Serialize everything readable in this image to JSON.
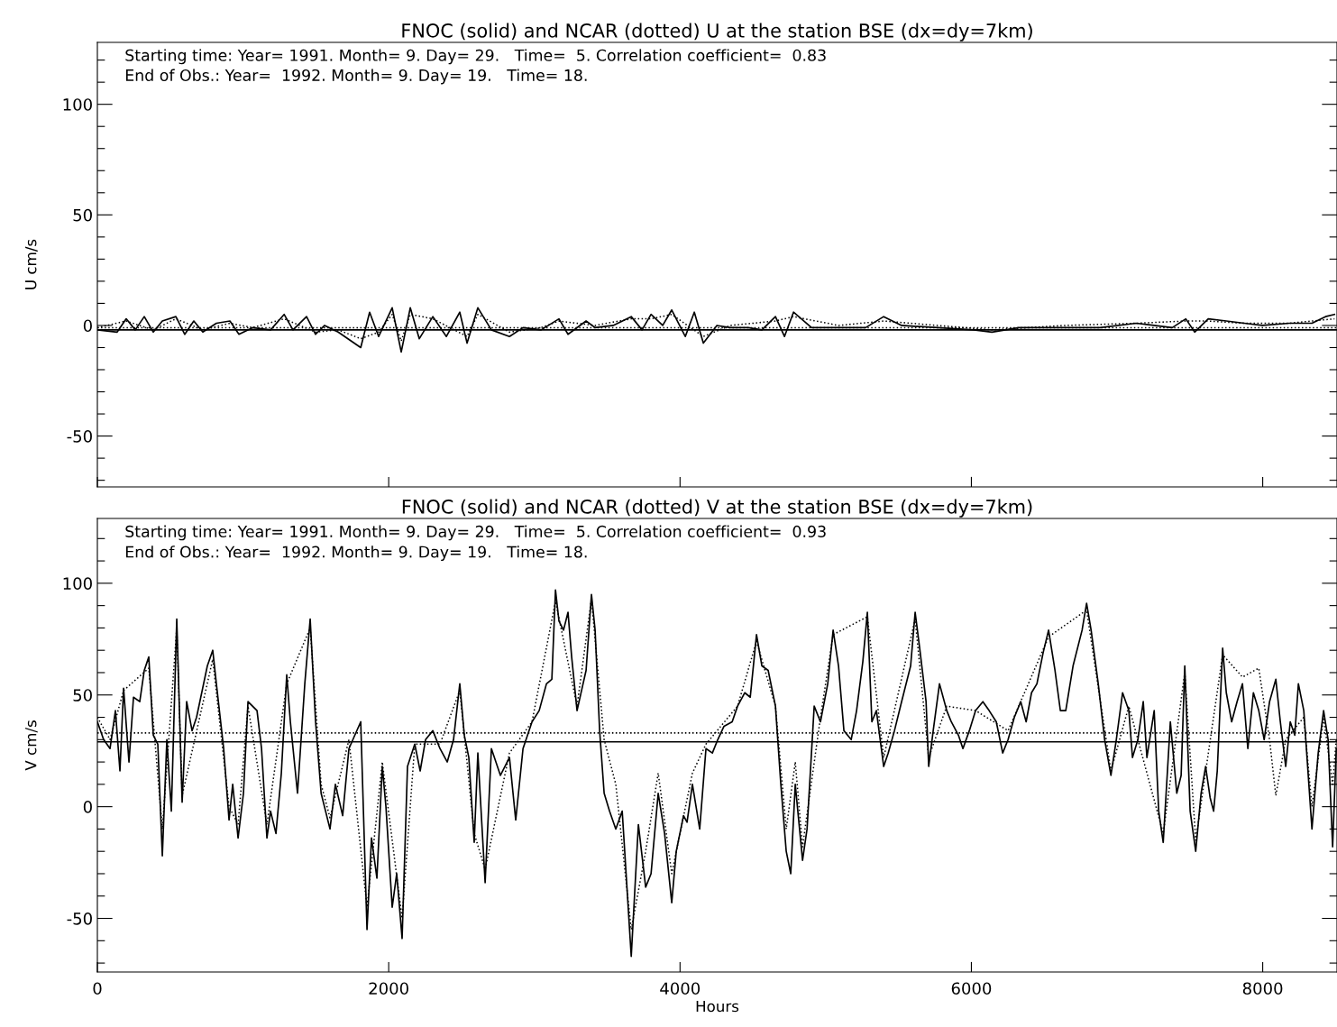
{
  "chart_data": [
    {
      "type": "line",
      "title": "FNOC (solid) and NCAR (dotted) U at the station BSE (dx=dy=7km)",
      "ylabel": "U cm/s",
      "annotations": [
        "Starting time: Year= 1991. Month= 9. Day= 29.   Time=  5. Correlation coefficient=  0.83",
        "End of Obs.: Year=  1992. Month= 9. Day= 19.   Time= 18."
      ],
      "xlim": [
        0,
        8510
      ],
      "xticks": [
        {
          "value": 0,
          "label": null
        },
        {
          "value": 2000,
          "label": null
        },
        {
          "value": 4000,
          "label": null
        },
        {
          "value": 6000,
          "label": null
        },
        {
          "value": 8000,
          "label": null
        }
      ],
      "ylim": [
        -73,
        128
      ],
      "yticks": [
        {
          "value": -70,
          "label": null
        },
        {
          "value": -60,
          "label": null
        },
        -50,
        {
          "value": -40,
          "label": null
        },
        {
          "value": -30,
          "label": null
        },
        {
          "value": -20,
          "label": null
        },
        {
          "value": -10,
          "label": null
        },
        0,
        {
          "value": 10,
          "label": null
        },
        {
          "value": 20,
          "label": null
        },
        {
          "value": 30,
          "label": null
        },
        {
          "value": 40,
          "label": null
        },
        50,
        {
          "value": 60,
          "label": null
        },
        {
          "value": 70,
          "label": null
        },
        {
          "value": 80,
          "label": null
        },
        {
          "value": 90,
          "label": null
        },
        100,
        {
          "value": 110,
          "label": null
        },
        {
          "value": 120,
          "label": null
        }
      ],
      "tick_labels": "y",
      "grid": false,
      "legend": false,
      "ref_lines": [
        {
          "axis": "y",
          "value": -2,
          "label": null,
          "color": "#000000",
          "line_style": "solid"
        },
        {
          "axis": "y",
          "value": -1,
          "label": null,
          "color": "#000000",
          "line_style": "dotted"
        }
      ],
      "series": [
        {
          "color": "#000000",
          "line_style": "solid",
          "x": [
            0,
            136,
            198,
            260,
            322,
            384,
            446,
            539,
            600,
            662,
            724,
            817,
            910,
            972,
            1065,
            1189,
            1282,
            1343,
            1436,
            1498,
            1560,
            1653,
            1808,
            1869,
            1931,
            2024,
            2086,
            2148,
            2210,
            2303,
            2396,
            2488,
            2538,
            2612,
            2705,
            2829,
            2922,
            3046,
            3169,
            3231,
            3355,
            3417,
            3541,
            3665,
            3739,
            3801,
            3881,
            3943,
            4036,
            4098,
            4160,
            4253,
            4345,
            4469,
            4562,
            4655,
            4717,
            4779,
            4903,
            5088,
            5274,
            5398,
            5521,
            5769,
            6017,
            6141,
            6326,
            6636,
            6883,
            7131,
            7379,
            7472,
            7533,
            7626,
            7750,
            7874,
            7998,
            8183,
            8338,
            8431,
            8493
          ],
          "values": [
            -2,
            -3,
            3,
            -2,
            4,
            -3,
            2,
            4,
            -4,
            2,
            -3,
            1,
            2,
            -4,
            -1,
            -2,
            5,
            -2,
            4,
            -4,
            0,
            -3,
            -10,
            6,
            -5,
            8,
            -12,
            8,
            -6,
            4,
            -5,
            6,
            -8,
            8,
            -2,
            -5,
            -1,
            -2,
            3,
            -4,
            2,
            -1,
            0,
            4,
            -2,
            5,
            0,
            7,
            -5,
            6,
            -8,
            0,
            -1,
            -1,
            -2,
            4,
            -5,
            6,
            -1,
            -1,
            -1,
            4,
            0,
            -1,
            -2,
            -3,
            -1,
            -1,
            -1,
            1,
            -1,
            3,
            -3,
            3,
            2,
            1,
            0,
            1,
            1,
            4,
            5
          ]
        },
        {
          "color": "#000000",
          "line_style": "dotted",
          "x": [
            0,
            198,
            384,
            539,
            724,
            910,
            1065,
            1282,
            1498,
            1653,
            1808,
            1931,
            2024,
            2086,
            2148,
            2303,
            2538,
            2612,
            2829,
            3046,
            3169,
            3417,
            3665,
            3801,
            3943,
            4160,
            4345,
            4655,
            4779,
            5088,
            5398,
            5769,
            6141,
            6636,
            7131,
            7472,
            7626,
            7874,
            8183,
            8493
          ],
          "values": [
            -1,
            2,
            -2,
            3,
            -2,
            1,
            -1,
            3,
            -3,
            -2,
            -6,
            -3,
            5,
            -7,
            5,
            3,
            -5,
            5,
            -3,
            -1,
            2,
            0,
            3,
            3,
            5,
            -5,
            0,
            2,
            4,
            0,
            2,
            0,
            -2,
            0,
            1,
            2,
            2,
            1,
            1,
            3
          ]
        }
      ]
    },
    {
      "type": "line",
      "title": "FNOC (solid) and NCAR (dotted) V at the station BSE (dx=dy=7km)",
      "xlabel": "Hours",
      "ylabel": "V cm/s",
      "annotations": [
        "Starting time: Year= 1991. Month= 9. Day= 29.   Time=  5. Correlation coefficient=  0.93",
        "End of Obs.: Year=  1992. Month= 9. Day= 19.   Time= 18."
      ],
      "xlim": [
        0,
        8510
      ],
      "xticks": [
        0,
        2000,
        4000,
        6000,
        8000
      ],
      "ylim": [
        -74,
        129
      ],
      "yticks": [
        {
          "value": -70,
          "label": null
        },
        {
          "value": -60,
          "label": null
        },
        -50,
        {
          "value": -40,
          "label": null
        },
        {
          "value": -30,
          "label": null
        },
        {
          "value": -20,
          "label": null
        },
        {
          "value": -10,
          "label": null
        },
        0,
        {
          "value": 10,
          "label": null
        },
        {
          "value": 20,
          "label": null
        },
        {
          "value": 30,
          "label": null
        },
        {
          "value": 40,
          "label": null
        },
        50,
        {
          "value": 60,
          "label": null
        },
        {
          "value": 70,
          "label": null
        },
        {
          "value": 80,
          "label": null
        },
        {
          "value": 90,
          "label": null
        },
        100,
        {
          "value": 110,
          "label": null
        },
        {
          "value": 120,
          "label": null
        }
      ],
      "grid": false,
      "legend": false,
      "ref_lines": [
        {
          "axis": "y",
          "value": 29,
          "label": null,
          "color": "#000000",
          "line_style": "solid"
        },
        {
          "axis": "y",
          "value": 33,
          "label": null,
          "color": "#000000",
          "line_style": "dotted"
        }
      ],
      "series": [
        {
          "color": "#000000",
          "line_style": "solid",
          "x": [
            0,
            43,
            87,
            124,
            155,
            180,
            217,
            248,
            291,
            322,
            353,
            384,
            415,
            446,
            477,
            508,
            545,
            582,
            613,
            650,
            681,
            755,
            792,
            817,
            867,
            904,
            929,
            966,
            1003,
            1034,
            1096,
            1127,
            1164,
            1189,
            1226,
            1263,
            1300,
            1325,
            1374,
            1424,
            1461,
            1498,
            1536,
            1597,
            1634,
            1684,
            1727,
            1808,
            1851,
            1882,
            1919,
            1956,
            1981,
            2024,
            2055,
            2092,
            2129,
            2179,
            2216,
            2253,
            2303,
            2352,
            2402,
            2445,
            2488,
            2519,
            2550,
            2587,
            2612,
            2662,
            2705,
            2767,
            2829,
            2872,
            2922,
            2984,
            3033,
            3083,
            3120,
            3145,
            3169,
            3200,
            3231,
            3256,
            3293,
            3355,
            3392,
            3417,
            3448,
            3479,
            3516,
            3559,
            3603,
            3665,
            3714,
            3764,
            3801,
            3850,
            3894,
            3943,
            3974,
            4024,
            4048,
            4085,
            4135,
            4178,
            4222,
            4259,
            4302,
            4358,
            4395,
            4444,
            4482,
            4525,
            4562,
            4605,
            4655,
            4692,
            4729,
            4760,
            4791,
            4841,
            4872,
            4921,
            4964,
            5014,
            5051,
            5088,
            5125,
            5175,
            5212,
            5255,
            5286,
            5317,
            5348,
            5398,
            5429,
            5472,
            5521,
            5583,
            5614,
            5645,
            5689,
            5707,
            5738,
            5781,
            5831,
            5862,
            5911,
            5942,
            5986,
            6029,
            6079,
            6122,
            6171,
            6215,
            6252,
            6295,
            6339,
            6376,
            6413,
            6450,
            6493,
            6530,
            6574,
            6611,
            6648,
            6698,
            6760,
            6791,
            6822,
            6871,
            6915,
            6958,
            6995,
            7038,
            7081,
            7106,
            7143,
            7180,
            7205,
            7255,
            7286,
            7317,
            7366,
            7410,
            7440,
            7465,
            7502,
            7540,
            7577,
            7608,
            7639,
            7663,
            7688,
            7725,
            7750,
            7787,
            7824,
            7861,
            7898,
            7936,
            7973,
            8010,
            8047,
            8090,
            8121,
            8158,
            8189,
            8220,
            8245,
            8282,
            8338,
            8381,
            8418,
            8449,
            8480,
            8505
          ],
          "values": [
            38,
            30,
            26,
            43,
            16,
            53,
            20,
            49,
            47,
            61,
            67,
            32,
            28,
            -22,
            30,
            -2,
            84,
            2,
            47,
            34,
            40,
            63,
            70,
            55,
            26,
            -6,
            10,
            -14,
            6,
            47,
            43,
            26,
            -14,
            -2,
            -12,
            15,
            59,
            38,
            6,
            55,
            84,
            38,
            6,
            -10,
            10,
            -4,
            26,
            38,
            -55,
            -14,
            -32,
            18,
            0,
            -45,
            -30,
            -59,
            18,
            28,
            16,
            30,
            34,
            26,
            20,
            30,
            55,
            32,
            22,
            -16,
            24,
            -34,
            26,
            14,
            22,
            -6,
            26,
            38,
            43,
            55,
            57,
            97,
            83,
            79,
            87,
            67,
            43,
            61,
            95,
            79,
            34,
            6,
            -2,
            -10,
            -2,
            -67,
            -8,
            -36,
            -30,
            6,
            -12,
            -43,
            -20,
            -4,
            -7,
            10,
            -10,
            26,
            24,
            30,
            36,
            38,
            45,
            51,
            49,
            77,
            63,
            61,
            45,
            10,
            -20,
            -30,
            10,
            -24,
            -10,
            45,
            38,
            55,
            79,
            63,
            34,
            30,
            43,
            65,
            87,
            38,
            43,
            18,
            24,
            34,
            47,
            63,
            87,
            71,
            47,
            18,
            34,
            55,
            43,
            38,
            32,
            26,
            34,
            43,
            47,
            43,
            38,
            24,
            30,
            40,
            47,
            38,
            51,
            55,
            69,
            79,
            61,
            43,
            43,
            63,
            79,
            91,
            79,
            55,
            30,
            14,
            30,
            51,
            43,
            22,
            30,
            47,
            22,
            43,
            -2,
            -16,
            38,
            6,
            14,
            63,
            -2,
            -20,
            6,
            18,
            4,
            -2,
            16,
            71,
            51,
            38,
            47,
            55,
            26,
            51,
            43,
            30,
            47,
            57,
            38,
            18,
            38,
            32,
            55,
            43,
            -10,
            24,
            43,
            30,
            -18,
            26
          ]
        },
        {
          "color": "#000000",
          "line_style": "dotted",
          "x": [
            0,
            87,
            180,
            353,
            446,
            545,
            582,
            792,
            904,
            966,
            1034,
            1164,
            1300,
            1461,
            1536,
            1597,
            1727,
            1851,
            1956,
            2092,
            2179,
            2352,
            2488,
            2587,
            2662,
            2829,
            2984,
            3145,
            3293,
            3392,
            3479,
            3559,
            3665,
            3764,
            3850,
            3943,
            4085,
            4178,
            4395,
            4525,
            4655,
            4729,
            4791,
            4841,
            4964,
            5051,
            5286,
            5398,
            5614,
            5707,
            5831,
            6029,
            6252,
            6530,
            6791,
            6958,
            7081,
            7317,
            7465,
            7540,
            7725,
            7861,
            7973,
            8047,
            8090,
            8158,
            8282,
            8338,
            8418,
            8480,
            8505
          ],
          "values": [
            40,
            30,
            52,
            62,
            -10,
            80,
            5,
            66,
            0,
            -8,
            45,
            -8,
            55,
            80,
            10,
            -5,
            30,
            -45,
            20,
            -50,
            28,
            28,
            52,
            -12,
            -28,
            24,
            38,
            92,
            45,
            93,
            30,
            10,
            -55,
            -20,
            15,
            -30,
            15,
            28,
            45,
            74,
            45,
            -10,
            20,
            -18,
            40,
            77,
            85,
            22,
            84,
            22,
            45,
            43,
            34,
            76,
            88,
            16,
            45,
            -12,
            60,
            -15,
            68,
            58,
            62,
            30,
            5,
            30,
            40,
            0,
            40,
            10,
            30
          ]
        }
      ]
    }
  ]
}
